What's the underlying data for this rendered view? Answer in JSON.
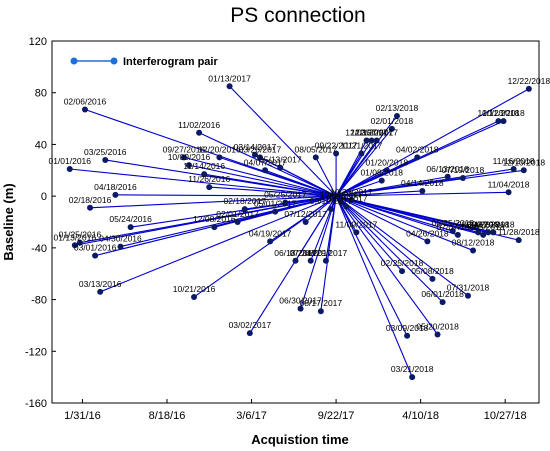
{
  "chart_data": {
    "type": "scatter",
    "title": "PS connection",
    "xlabel": "Acquistion time",
    "ylabel": "Baseline (m)",
    "legend": {
      "entries": [
        "Interferogram pair"
      ],
      "placement": "top-left"
    },
    "grid": false,
    "x_axis": {
      "type": "date",
      "range": [
        "2015-11-20",
        "2019-01-15"
      ],
      "ticks": [
        "2016-01-31",
        "2016-08-18",
        "2017-03-06",
        "2017-09-22",
        "2018-04-10",
        "2018-10-27"
      ],
      "tick_labels": [
        "1/31/16",
        "8/18/16",
        "3/6/17",
        "9/22/17",
        "4/10/18",
        "10/27/18"
      ]
    },
    "y_axis": {
      "range": [
        -160,
        120
      ],
      "ticks": [
        120,
        80,
        40,
        0,
        -40,
        -80,
        -120,
        -160
      ],
      "tick_labels": [
        "120",
        "80",
        "40",
        "0",
        "-40",
        "-80",
        "-120",
        "-160"
      ]
    },
    "series": [
      {
        "name": "Interferogram pair",
        "color": "#0000cc",
        "hub": {
          "x": "2017-09-22",
          "y": 0
        },
        "points": [
          {
            "label": "01/01/2016",
            "x": "2016-01-01",
            "y": 21
          },
          {
            "label": "01/13/2016",
            "x": "2016-01-13",
            "y": -38
          },
          {
            "label": "01/25/2016",
            "x": "2016-01-25",
            "y": -36
          },
          {
            "label": "02/06/2016",
            "x": "2016-02-06",
            "y": 67
          },
          {
            "label": "02/18/2016",
            "x": "2016-02-18",
            "y": -9
          },
          {
            "label": "03/01/2016",
            "x": "2016-03-01",
            "y": -46
          },
          {
            "label": "03/13/2016",
            "x": "2016-03-13",
            "y": -74
          },
          {
            "label": "03/25/2016",
            "x": "2016-03-25",
            "y": 28
          },
          {
            "label": "04/18/2016",
            "x": "2016-04-18",
            "y": 1
          },
          {
            "label": "04/30/2016",
            "x": "2016-04-30",
            "y": -39
          },
          {
            "label": "05/24/2016",
            "x": "2016-05-24",
            "y": -24
          },
          {
            "label": "10/21/2016",
            "x": "2016-10-21",
            "y": -78
          },
          {
            "label": "11/02/2016",
            "x": "2016-11-02",
            "y": 49
          },
          {
            "label": "09/27/2016",
            "x": "2016-09-27",
            "y": 30
          },
          {
            "label": "10/09/2016",
            "x": "2016-10-09",
            "y": 24
          },
          {
            "label": "11/14/2016",
            "x": "2016-11-14",
            "y": 17
          },
          {
            "label": "11/26/2016",
            "x": "2016-11-26",
            "y": 7
          },
          {
            "label": "12/08/2016",
            "x": "2016-12-08",
            "y": -24
          },
          {
            "label": "12/20/2016",
            "x": "2016-12-20",
            "y": 30
          },
          {
            "label": "01/13/2017",
            "x": "2017-01-13",
            "y": 85
          },
          {
            "label": "02/01/2017",
            "x": "2017-02-01",
            "y": -20
          },
          {
            "label": "02/18/2017",
            "x": "2017-02-18",
            "y": -10
          },
          {
            "label": "03/02/2017",
            "x": "2017-03-02",
            "y": -106
          },
          {
            "label": "03/14/2017",
            "x": "2017-03-14",
            "y": 32
          },
          {
            "label": "03/26/2017",
            "x": "2017-03-26",
            "y": 30
          },
          {
            "label": "04/07/2017",
            "x": "2017-04-07",
            "y": 20
          },
          {
            "label": "04/19/2017",
            "x": "2017-04-19",
            "y": -35
          },
          {
            "label": "05/01/2017",
            "x": "2017-05-01",
            "y": -12
          },
          {
            "label": "05/13/2017",
            "x": "2017-05-13",
            "y": 22
          },
          {
            "label": "05/25/2017",
            "x": "2017-05-25",
            "y": -5
          },
          {
            "label": "06/18/2017",
            "x": "2017-06-18",
            "y": -50
          },
          {
            "label": "06/30/2017",
            "x": "2017-06-30",
            "y": -87
          },
          {
            "label": "07/12/2017",
            "x": "2017-07-12",
            "y": -20
          },
          {
            "label": "07/24/2017",
            "x": "2017-07-24",
            "y": -50
          },
          {
            "label": "08/05/2017",
            "x": "2017-08-05",
            "y": 30
          },
          {
            "label": "08/17/2017",
            "x": "2017-08-17",
            "y": -89
          },
          {
            "label": "08/29/2017",
            "x": "2017-08-29",
            "y": -50
          },
          {
            "label": "09/10/2017",
            "x": "2017-09-10",
            "y": -10
          },
          {
            "label": "09/22/2017",
            "x": "2017-09-22",
            "y": 33
          },
          {
            "label": "10/04/2017",
            "x": "2017-10-04",
            "y": -5
          },
          {
            "label": "10/16/2017",
            "x": "2017-10-16",
            "y": -8
          },
          {
            "label": "10/28/2017",
            "x": "2017-10-28",
            "y": -3
          },
          {
            "label": "11/09/2017",
            "x": "2017-11-09",
            "y": -28
          },
          {
            "label": "11/21/2017",
            "x": "2017-11-21",
            "y": 33
          },
          {
            "label": "12/03/2017",
            "x": "2017-12-03",
            "y": 43
          },
          {
            "label": "12/15/2017",
            "x": "2017-12-15",
            "y": 43
          },
          {
            "label": "12/27/2017",
            "x": "2017-12-27",
            "y": 43
          },
          {
            "label": "01/08/2018",
            "x": "2018-01-08",
            "y": 12
          },
          {
            "label": "01/20/2018",
            "x": "2018-01-20",
            "y": 20
          },
          {
            "label": "02/01/2018",
            "x": "2018-02-01",
            "y": 52
          },
          {
            "label": "02/13/2018",
            "x": "2018-02-13",
            "y": 62
          },
          {
            "label": "02/25/2018",
            "x": "2018-02-25",
            "y": -58
          },
          {
            "label": "03/09/2018",
            "x": "2018-03-09",
            "y": -108
          },
          {
            "label": "03/21/2018",
            "x": "2018-03-21",
            "y": -140
          },
          {
            "label": "04/02/2018",
            "x": "2018-04-02",
            "y": 30
          },
          {
            "label": "04/14/2018",
            "x": "2018-04-14",
            "y": 4
          },
          {
            "label": "04/26/2018",
            "x": "2018-04-26",
            "y": -35
          },
          {
            "label": "05/08/2018",
            "x": "2018-05-08",
            "y": -64
          },
          {
            "label": "05/20/2018",
            "x": "2018-05-20",
            "y": -107
          },
          {
            "label": "06/01/2018",
            "x": "2018-06-01",
            "y": -82
          },
          {
            "label": "06/13/2018",
            "x": "2018-06-13",
            "y": 15
          },
          {
            "label": "06/25/2018",
            "x": "2018-06-25",
            "y": -27
          },
          {
            "label": "07/07/2018",
            "x": "2018-07-07",
            "y": -30
          },
          {
            "label": "07/19/2018",
            "x": "2018-07-19",
            "y": 14
          },
          {
            "label": "07/31/2018",
            "x": "2018-07-31",
            "y": -77
          },
          {
            "label": "08/12/2018",
            "x": "2018-08-12",
            "y": -42
          },
          {
            "label": "08/24/2018",
            "x": "2018-08-24",
            "y": -28
          },
          {
            "label": "09/05/2018",
            "x": "2018-09-05",
            "y": -30
          },
          {
            "label": "09/17/2018",
            "x": "2018-09-17",
            "y": -28
          },
          {
            "label": "09/29/2018",
            "x": "2018-09-29",
            "y": -28
          },
          {
            "label": "10/11/2018",
            "x": "2018-10-11",
            "y": 58
          },
          {
            "label": "10/23/2018",
            "x": "2018-10-23",
            "y": 58
          },
          {
            "label": "11/04/2018",
            "x": "2018-11-04",
            "y": 3
          },
          {
            "label": "11/16/2018",
            "x": "2018-11-16",
            "y": 21
          },
          {
            "label": "11/28/2018",
            "x": "2018-11-28",
            "y": -34
          },
          {
            "label": "12/10/2018",
            "x": "2018-12-10",
            "y": 20
          },
          {
            "label": "12/22/2018",
            "x": "2018-12-22",
            "y": 83
          }
        ]
      }
    ]
  }
}
